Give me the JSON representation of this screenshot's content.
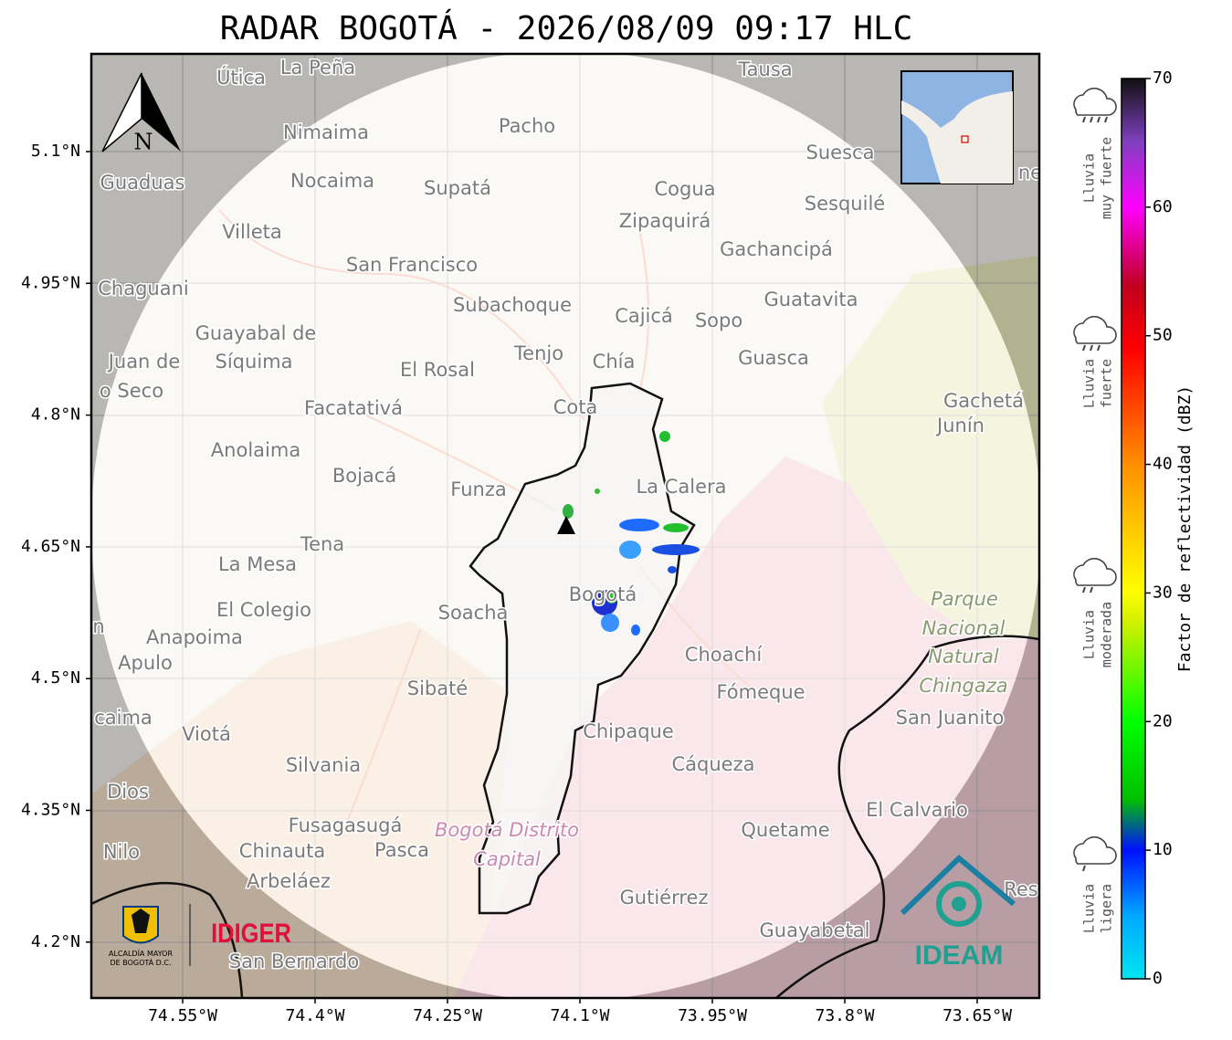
{
  "title": "RADAR BOGOTÁ - 2026/08/09 09:17 HLC",
  "map": {
    "lat_ticks": [
      "5.1°N",
      "4.95°N",
      "4.8°N",
      "4.65°N",
      "4.5°N",
      "4.35°N",
      "4.2°N"
    ],
    "lon_ticks": [
      "74.55°W",
      "74.4°W",
      "74.25°W",
      "74.1°W",
      "73.95°W",
      "73.8°W",
      "73.65°W"
    ],
    "north": "N",
    "places": [
      "La Peña",
      "Útica",
      "Tausa",
      "Pacho",
      "Nimaima",
      "Guaduas",
      "Nocaima",
      "Supatá",
      "Cogua",
      "Suesca",
      "Sesquilé",
      "Zipaquirá",
      "Villeta",
      "Gachancipá",
      "San Francisco",
      "Chaguani",
      "Guatavita",
      "Subachoque",
      "Cajicá",
      "Sopo",
      "Guayabal de",
      "Síquima",
      "Juan de",
      "o Seco",
      "Tenjo",
      "Chía",
      "El Rosal",
      "Guasca",
      "Facatativá",
      "Cota",
      "Gachetá",
      "Junín",
      "Anolaima",
      "Bojacá",
      "Funza",
      "La Calera",
      "Tena",
      "La Mesa",
      "El Colegio",
      "Bogotá",
      "Soacha",
      "Anapoima",
      "Apulo",
      "Choachí",
      "Sibaté",
      "Fómeque",
      "San Juanito",
      "caima",
      "Viotá",
      "Chipaque",
      "Silvania",
      "Cáqueza",
      "Dios",
      "El Calvario",
      "Fusagasugá",
      "Quetame",
      "Nilo",
      "Chinauta",
      "Pasca",
      "Arbeláez",
      "Gutiérrez",
      "Guayabetal",
      "San Bernardo",
      "Res",
      "ne",
      "n"
    ],
    "park": [
      "Parque",
      "Nacional",
      "Natural",
      "Chingaza"
    ],
    "district": [
      "Bogotá Distrito",
      "Capital"
    ]
  },
  "logos": {
    "alcaldia": [
      "ALCALDÍA MAYOR",
      "DE BOGOTÁ D.C."
    ],
    "idiger": "IDIGER",
    "ideam": "IDEAM"
  },
  "colorbar": {
    "label": "Factor de reflectividad (dBZ)",
    "lim": [
      0,
      70
    ],
    "ticks": [
      0,
      10,
      20,
      30,
      40,
      50,
      60,
      70
    ]
  },
  "rain_levels": [
    [
      "Lluvia",
      "muy fuerte"
    ],
    [
      "Lluvia",
      "fuerte"
    ],
    [
      "Lluvia",
      "moderada"
    ],
    [
      "Lluvia",
      "ligera"
    ]
  ]
}
